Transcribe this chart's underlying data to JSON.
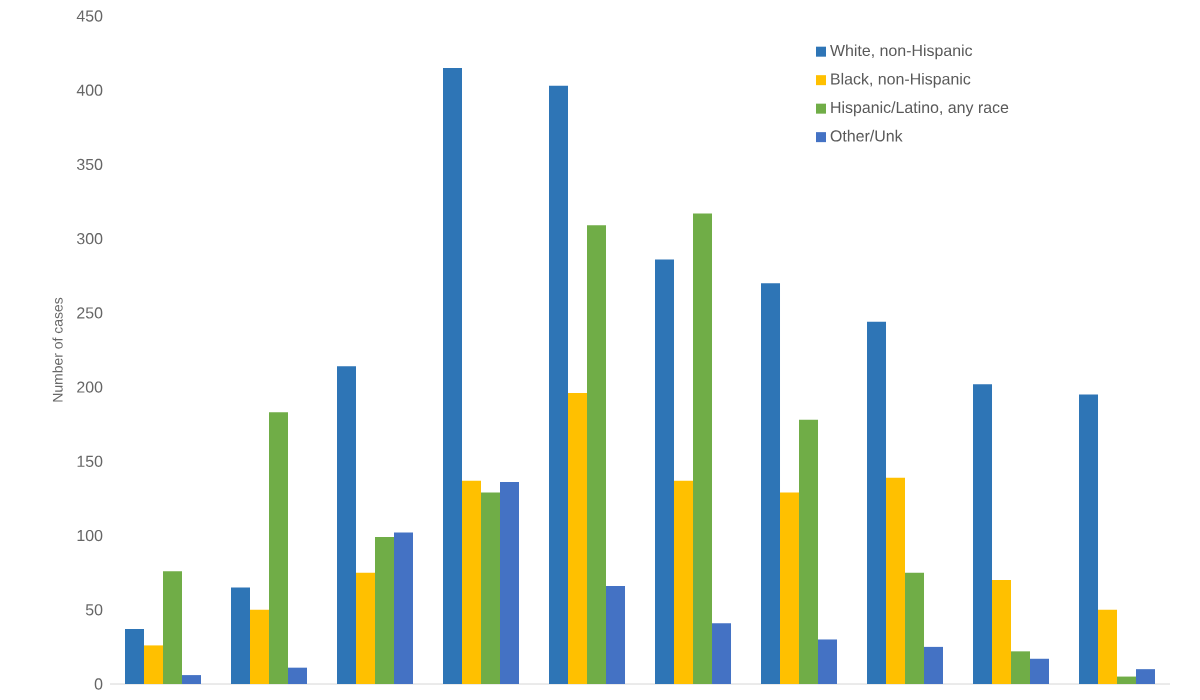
{
  "chart_data": {
    "type": "bar",
    "ylabel": "Number of cases",
    "categories": [
      null,
      null,
      null,
      null,
      null,
      null,
      null,
      null,
      null,
      null
    ],
    "series": [
      {
        "name": "White, non-Hispanic",
        "color": "#2e75b6",
        "values": [
          37,
          65,
          214,
          415,
          403,
          286,
          270,
          244,
          202,
          195
        ]
      },
      {
        "name": "Black, non-Hispanic",
        "color": "#ffc000",
        "values": [
          26,
          50,
          75,
          137,
          196,
          137,
          129,
          139,
          70,
          50
        ]
      },
      {
        "name": "Hispanic/Latino, any race",
        "color": "#70ad47",
        "values": [
          76,
          183,
          99,
          129,
          309,
          317,
          178,
          75,
          22,
          5
        ]
      },
      {
        "name": "Other/Unk",
        "color": "#4472c4",
        "values": [
          6,
          11,
          102,
          136,
          66,
          41,
          30,
          25,
          17,
          10
        ]
      }
    ],
    "ylim": [
      0,
      450
    ],
    "yticks": [
      0,
      50,
      100,
      150,
      200,
      250,
      300,
      350,
      400,
      450
    ],
    "grid": false,
    "legend": "top right"
  }
}
